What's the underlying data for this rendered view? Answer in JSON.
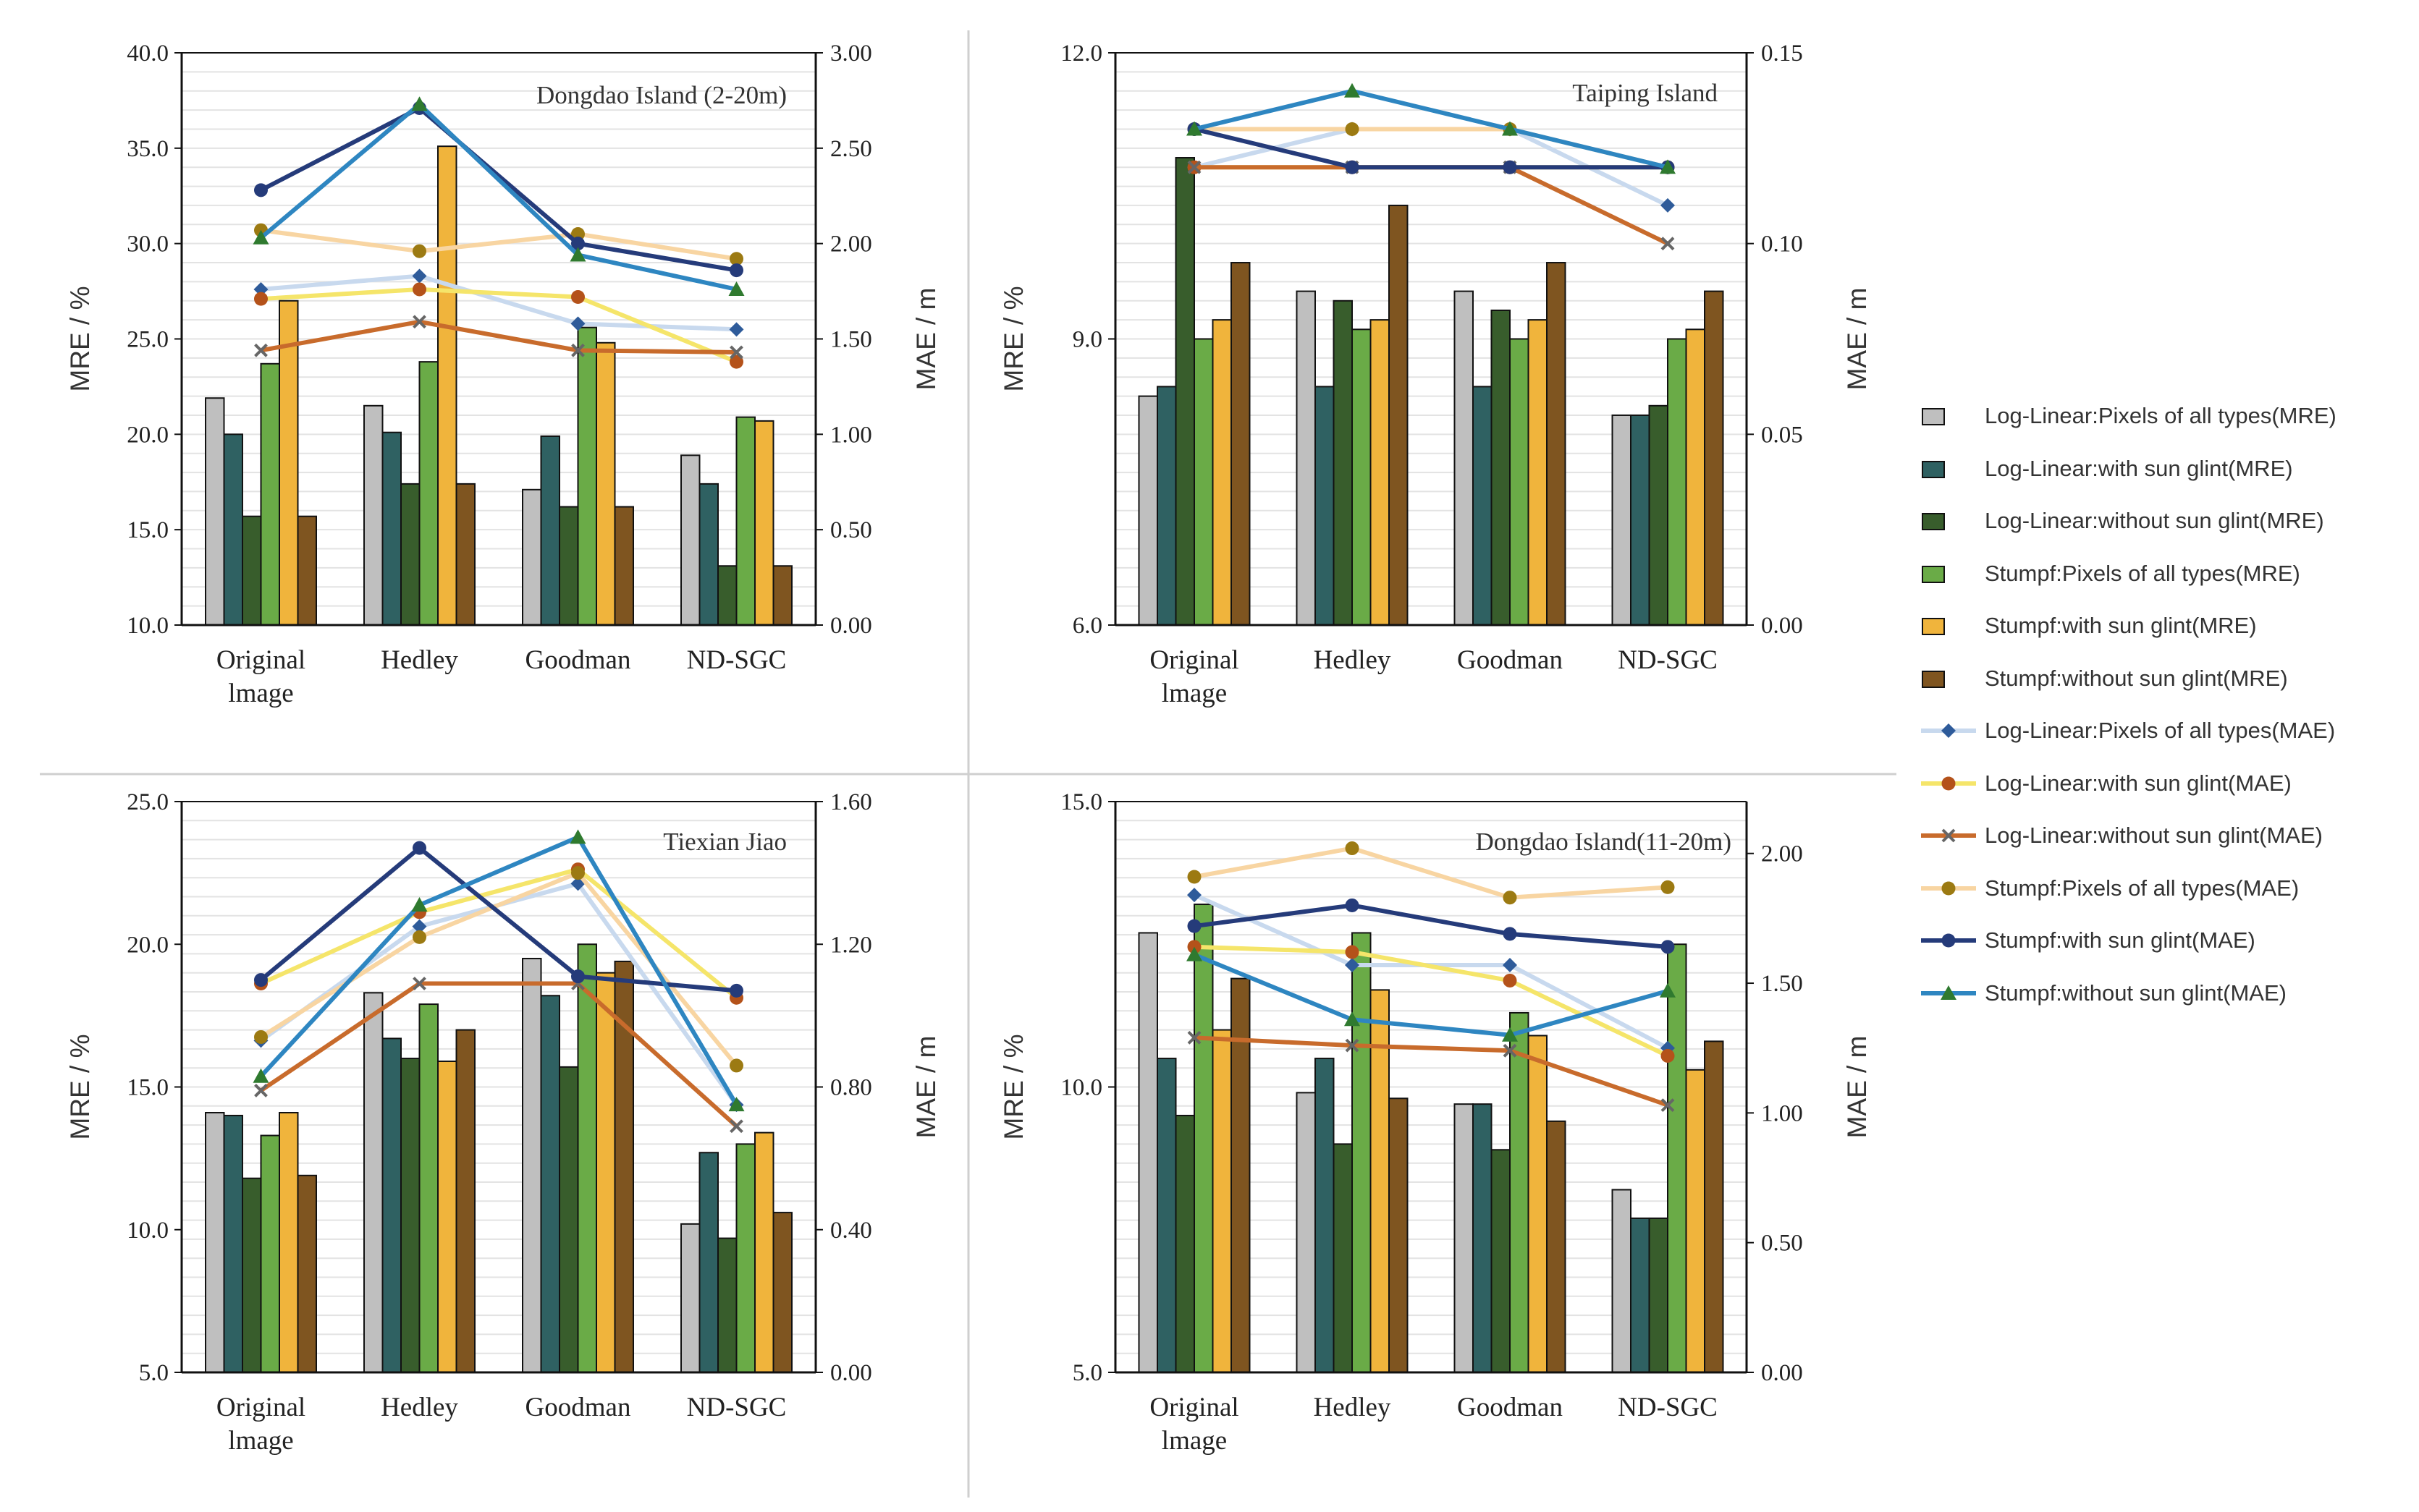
{
  "figure": {
    "categories_display": [
      [
        "Original",
        "lmage"
      ],
      [
        "Hedley"
      ],
      [
        "Goodman"
      ],
      [
        "ND-SGC"
      ]
    ],
    "y_left_label": "MRE / %",
    "y_right_label": "MAE / m"
  },
  "legend": [
    {
      "label": "Log-Linear:Pixels of all types(MRE)",
      "kind": "bar",
      "color": "#bfbfbf"
    },
    {
      "label": "Log-Linear:with sun glint(MRE)",
      "kind": "bar",
      "color": "#2f6162"
    },
    {
      "label": "Log-Linear:without sun glint(MRE)",
      "kind": "bar",
      "color": "#385d2c"
    },
    {
      "label": "Stumpf:Pixels of all types(MRE)",
      "kind": "bar",
      "color": "#6aab47"
    },
    {
      "label": "Stumpf:with sun glint(MRE)",
      "kind": "bar",
      "color": "#f0b43c"
    },
    {
      "label": "Stumpf:without sun glint(MRE)",
      "kind": "bar",
      "color": "#7f5520"
    },
    {
      "label": "Log-Linear:Pixels of all types(MAE)",
      "kind": "line",
      "color": "#c8d9ee",
      "marker": "diamond",
      "markerColor": "#2e5b9a"
    },
    {
      "label": "Log-Linear:with sun glint(MAE)",
      "kind": "line",
      "color": "#f5e56a",
      "marker": "circle",
      "markerColor": "#b4521a"
    },
    {
      "label": "Log-Linear:without sun glint(MAE)",
      "kind": "line",
      "color": "#c86b2c",
      "marker": "x",
      "markerColor": "#666666"
    },
    {
      "label": "Stumpf:Pixels of all types(MAE)",
      "kind": "line",
      "color": "#f8d5a2",
      "marker": "circle",
      "markerColor": "#9c7a12"
    },
    {
      "label": "Stumpf:with sun glint(MAE)",
      "kind": "line",
      "color": "#253b7a",
      "marker": "circle",
      "markerColor": "#253b7a"
    },
    {
      "label": "Stumpf:without sun glint(MAE)",
      "kind": "line",
      "color": "#2e86c1",
      "marker": "triangle",
      "markerColor": "#2f7a2f"
    }
  ],
  "chart_data": [
    {
      "type": "bar+line",
      "title": "Dongdao Island (2-20m)",
      "categories": [
        "Original Image",
        "Hedley",
        "Goodman",
        "ND-SGC"
      ],
      "ylabel": "MRE / %",
      "y2label": "MAE / m",
      "ylim": [
        10.0,
        40.0
      ],
      "y2lim": [
        0.0,
        3.0
      ],
      "yticks": [
        "10.0",
        "15.0",
        "20.0",
        "25.0",
        "30.0",
        "35.0",
        "40.0"
      ],
      "y2ticks": [
        "0.00",
        "0.50",
        "1.00",
        "1.50",
        "2.00",
        "2.50",
        "3.00"
      ],
      "bars": [
        {
          "name": "Log-Linear:Pixels of all types(MRE)",
          "values": [
            21.9,
            21.5,
            17.1,
            18.9
          ]
        },
        {
          "name": "Log-Linear:with sun glint(MRE)",
          "values": [
            20.0,
            20.1,
            19.9,
            17.4
          ]
        },
        {
          "name": "Log-Linear:without sun glint(MRE)",
          "values": [
            15.7,
            17.4,
            16.2,
            13.1
          ]
        },
        {
          "name": "Stumpf:Pixels of all types(MRE)",
          "values": [
            23.7,
            23.8,
            25.6,
            20.9
          ]
        },
        {
          "name": "Stumpf:with sun glint(MRE)",
          "values": [
            27.0,
            35.1,
            24.8,
            20.7
          ]
        },
        {
          "name": "Stumpf:without sun glint(MRE)",
          "values": [
            15.7,
            17.4,
            16.2,
            13.1
          ]
        }
      ],
      "lines": [
        {
          "name": "Log-Linear:Pixels of all types(MAE)",
          "values": [
            1.76,
            1.83,
            1.58,
            1.55
          ]
        },
        {
          "name": "Log-Linear:with sun glint(MAE)",
          "values": [
            1.71,
            1.76,
            1.72,
            1.38
          ]
        },
        {
          "name": "Log-Linear:without sun glint(MAE)",
          "values": [
            1.44,
            1.59,
            1.44,
            1.43
          ]
        },
        {
          "name": "Stumpf:Pixels of all types(MAE)",
          "values": [
            2.07,
            1.96,
            2.05,
            1.92
          ]
        },
        {
          "name": "Stumpf:with sun glint(MAE)",
          "values": [
            2.28,
            2.71,
            2.0,
            1.86
          ]
        },
        {
          "name": "Stumpf:without sun glint(MAE)",
          "values": [
            2.03,
            2.73,
            1.94,
            1.76
          ]
        }
      ]
    },
    {
      "type": "bar+line",
      "title": "Taiping Island",
      "categories": [
        "Original Image",
        "Hedley",
        "Goodman",
        "ND-SGC"
      ],
      "ylabel": "MRE / %",
      "y2label": "MAE / m",
      "ylim": [
        6.0,
        12.0
      ],
      "y2lim": [
        0.0,
        0.15
      ],
      "yticks": [
        "6.0",
        "9.0",
        "12.0"
      ],
      "y2ticks": [
        "0.00",
        "0.05",
        "0.10",
        "0.15"
      ],
      "bars": [
        {
          "name": "Log-Linear:Pixels of all types(MRE)",
          "values": [
            8.4,
            9.5,
            9.5,
            8.2
          ]
        },
        {
          "name": "Log-Linear:with sun glint(MRE)",
          "values": [
            8.5,
            8.5,
            8.5,
            8.2
          ]
        },
        {
          "name": "Log-Linear:without sun glint(MRE)",
          "values": [
            10.9,
            9.4,
            9.3,
            8.3
          ]
        },
        {
          "name": "Stumpf:Pixels of all types(MRE)",
          "values": [
            9.0,
            9.1,
            9.0,
            9.0
          ]
        },
        {
          "name": "Stumpf:with sun glint(MRE)",
          "values": [
            9.2,
            9.2,
            9.2,
            9.1
          ]
        },
        {
          "name": "Stumpf:without sun glint(MRE)",
          "values": [
            9.8,
            10.4,
            9.8,
            9.5
          ]
        }
      ],
      "lines": [
        {
          "name": "Log-Linear:Pixels of all types(MAE)",
          "values": [
            0.12,
            0.13,
            0.13,
            0.11
          ]
        },
        {
          "name": "Log-Linear:with sun glint(MAE)",
          "values": [
            0.12,
            0.12,
            0.12,
            0.12
          ]
        },
        {
          "name": "Log-Linear:without sun glint(MAE)",
          "values": [
            0.12,
            0.12,
            0.12,
            0.1
          ]
        },
        {
          "name": "Stumpf:Pixels of all types(MAE)",
          "values": [
            0.13,
            0.13,
            0.13,
            0.12
          ]
        },
        {
          "name": "Stumpf:with sun glint(MAE)",
          "values": [
            0.13,
            0.12,
            0.12,
            0.12
          ]
        },
        {
          "name": "Stumpf:without sun glint(MAE)",
          "values": [
            0.13,
            0.14,
            0.13,
            0.12
          ]
        }
      ]
    },
    {
      "type": "bar+line",
      "title": "Tiexian Jiao",
      "categories": [
        "Original Image",
        "Hedley",
        "Goodman",
        "ND-SGC"
      ],
      "ylabel": "MRE / %",
      "y2label": "MAE / m",
      "ylim": [
        5.0,
        25.0
      ],
      "y2lim": [
        0.0,
        1.6
      ],
      "yticks": [
        "5.0",
        "10.0",
        "15.0",
        "20.0",
        "25.0"
      ],
      "y2ticks": [
        "0.00",
        "0.40",
        "0.80",
        "1.20",
        "1.60"
      ],
      "bars": [
        {
          "name": "Log-Linear:Pixels of all types(MRE)",
          "values": [
            14.1,
            18.3,
            19.5,
            10.2
          ]
        },
        {
          "name": "Log-Linear:with sun glint(MRE)",
          "values": [
            14.0,
            16.7,
            18.2,
            12.7
          ]
        },
        {
          "name": "Log-Linear:without sun glint(MRE)",
          "values": [
            11.8,
            16.0,
            15.7,
            9.7
          ]
        },
        {
          "name": "Stumpf:Pixels of all types(MRE)",
          "values": [
            13.3,
            17.9,
            20.0,
            13.0
          ]
        },
        {
          "name": "Stumpf:with sun glint(MRE)",
          "values": [
            14.1,
            15.9,
            19.0,
            13.4
          ]
        },
        {
          "name": "Stumpf:without sun glint(MRE)",
          "values": [
            11.9,
            17.0,
            19.4,
            10.6
          ]
        }
      ],
      "lines": [
        {
          "name": "Log-Linear:Pixels of all types(MAE)",
          "values": [
            0.93,
            1.25,
            1.37,
            0.75
          ]
        },
        {
          "name": "Log-Linear:with sun glint(MAE)",
          "values": [
            1.09,
            1.29,
            1.41,
            1.05
          ]
        },
        {
          "name": "Log-Linear:without sun glint(MAE)",
          "values": [
            0.79,
            1.09,
            1.09,
            0.69
          ]
        },
        {
          "name": "Stumpf:Pixels of all types(MAE)",
          "values": [
            0.94,
            1.22,
            1.4,
            0.86
          ]
        },
        {
          "name": "Stumpf:with sun glint(MAE)",
          "values": [
            1.1,
            1.47,
            1.11,
            1.07
          ]
        },
        {
          "name": "Stumpf:without sun glint(MAE)",
          "values": [
            0.83,
            1.31,
            1.5,
            0.75
          ]
        }
      ]
    },
    {
      "type": "bar+line",
      "title": "Dongdao Island(11-20m)",
      "categories": [
        "Original Image",
        "Hedley",
        "Goodman",
        "ND-SGC"
      ],
      "ylabel": "MRE / %",
      "y2label": "MAE / m",
      "ylim": [
        5.0,
        15.0
      ],
      "y2lim": [
        0.0,
        2.2
      ],
      "yticks": [
        "5.0",
        "10.0",
        "15.0"
      ],
      "y2ticks": [
        "0.00",
        "0.50",
        "1.00",
        "1.50",
        "2.00"
      ],
      "bars": [
        {
          "name": "Log-Linear:Pixels of all types(MRE)",
          "values": [
            12.7,
            9.9,
            9.7,
            8.2
          ]
        },
        {
          "name": "Log-Linear:with sun glint(MRE)",
          "values": [
            10.5,
            10.5,
            9.7,
            7.7
          ]
        },
        {
          "name": "Log-Linear:without sun glint(MRE)",
          "values": [
            9.5,
            9.0,
            8.9,
            7.7
          ]
        },
        {
          "name": "Stumpf:Pixels of all types(MRE)",
          "values": [
            13.2,
            12.7,
            11.3,
            12.5
          ]
        },
        {
          "name": "Stumpf:with sun glint(MRE)",
          "values": [
            11.0,
            11.7,
            10.9,
            10.3
          ]
        },
        {
          "name": "Stumpf:without sun glint(MRE)",
          "values": [
            11.9,
            9.8,
            9.4,
            10.8
          ]
        }
      ],
      "lines": [
        {
          "name": "Log-Linear:Pixels of all types(MAE)",
          "values": [
            1.84,
            1.57,
            1.57,
            1.25
          ]
        },
        {
          "name": "Log-Linear:with sun glint(MAE)",
          "values": [
            1.64,
            1.62,
            1.51,
            1.22
          ]
        },
        {
          "name": "Log-Linear:without sun glint(MAE)",
          "values": [
            1.29,
            1.26,
            1.24,
            1.03
          ]
        },
        {
          "name": "Stumpf:Pixels of all types(MAE)",
          "values": [
            1.91,
            2.02,
            1.83,
            1.87
          ]
        },
        {
          "name": "Stumpf:with sun glint(MAE)",
          "values": [
            1.72,
            1.8,
            1.69,
            1.64
          ]
        },
        {
          "name": "Stumpf:without sun glint(MAE)",
          "values": [
            1.61,
            1.36,
            1.3,
            1.47
          ]
        }
      ]
    }
  ]
}
